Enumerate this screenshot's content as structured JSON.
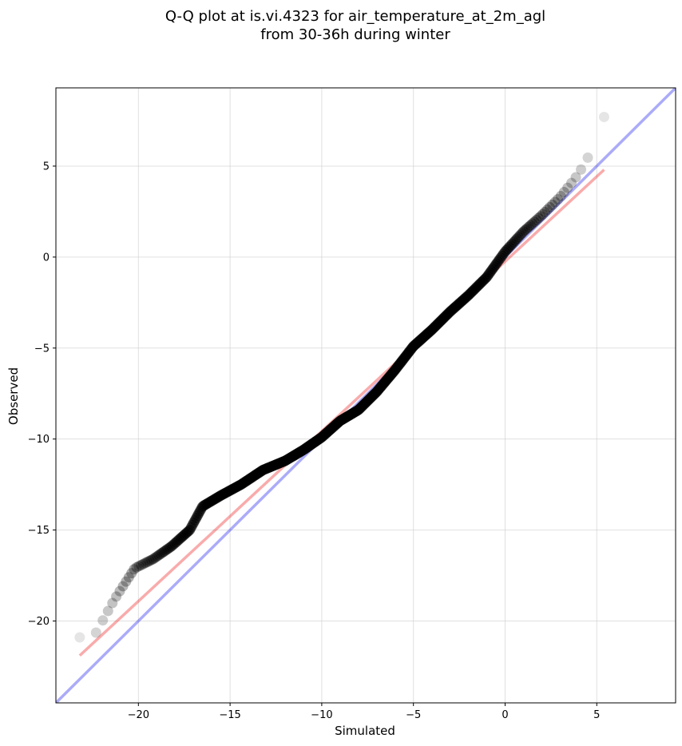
{
  "chart_data": {
    "type": "scatter",
    "title": [
      "Q-Q plot at is.vi.4323 for air_temperature_at_2m_agl",
      "from 30-36h during winter"
    ],
    "xlabel": "Simulated",
    "ylabel": "Observed",
    "xlim": [
      -24.5,
      9.3
    ],
    "ylim": [
      -24.5,
      9.3
    ],
    "xticks": [
      -20,
      -15,
      -10,
      -5,
      0,
      5
    ],
    "yticks": [
      5,
      0,
      -5,
      -10,
      -15,
      -20
    ],
    "xtick_labels": [
      "−20",
      "−15",
      "−10",
      "−5",
      "0",
      "5"
    ],
    "ytick_labels": [
      "5",
      "0",
      "−5",
      "−10",
      "−15",
      "−20"
    ],
    "grid": true,
    "colors": {
      "points": "#000000",
      "identity_line": "#0000ee",
      "fit_line": "#ee0000"
    },
    "identity_line": {
      "x": [
        -24.5,
        9.3
      ],
      "y": [
        -24.5,
        9.3
      ]
    },
    "fit_line": {
      "x": [
        -23.2,
        5.4
      ],
      "y": [
        -21.9,
        4.8
      ]
    },
    "quantile_anchors": {
      "x": [
        -23.2,
        -22.4,
        -21.3,
        -20.2,
        -19.2,
        -18.2,
        -17.2,
        -16.5,
        -15.5,
        -14.4,
        -13.2,
        -12.0,
        -11.0,
        -10.0,
        -9.0,
        -8.0,
        -7.0,
        -6.0,
        -5.0,
        -4.0,
        -3.0,
        -2.0,
        -1.0,
        0.0,
        1.0,
        2.0,
        3.0,
        3.8,
        4.4,
        4.9,
        5.4
      ],
      "y": [
        -20.9,
        -20.8,
        -18.8,
        -17.1,
        -16.6,
        -15.9,
        -15.0,
        -13.7,
        -13.1,
        -12.5,
        -11.7,
        -11.2,
        -10.6,
        -9.9,
        -9.0,
        -8.4,
        -7.4,
        -6.2,
        -4.9,
        -4.0,
        -3.0,
        -2.1,
        -1.1,
        0.3,
        1.4,
        2.3,
        3.3,
        4.3,
        5.2,
        6.4,
        7.7
      ]
    },
    "point_count": 420,
    "point_alpha": "0.12 at tails rising to 0.6 in center"
  }
}
